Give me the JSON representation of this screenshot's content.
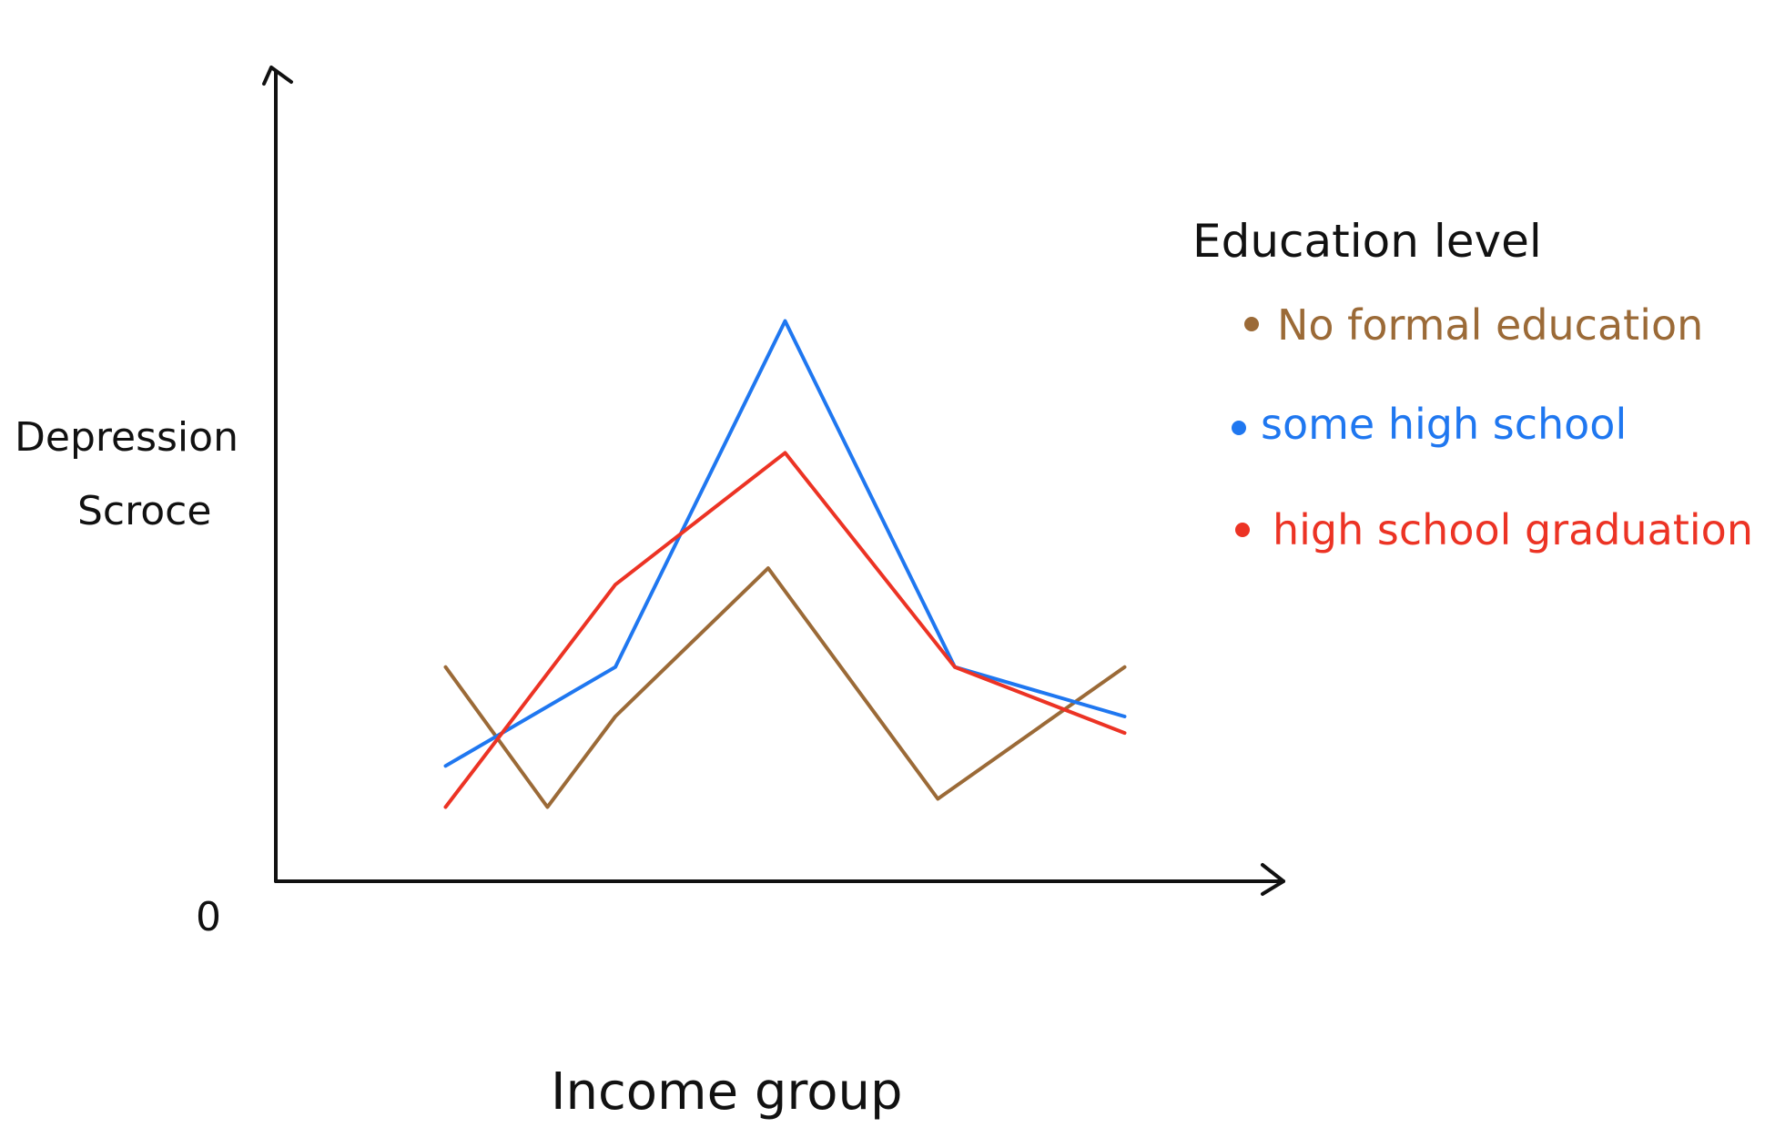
{
  "chart_data": {
    "type": "line",
    "title": "",
    "xlabel": "Income group",
    "ylabel_lines": [
      "Depression",
      "Scroce"
    ],
    "origin_label": "0",
    "x": [
      1,
      2,
      3,
      4,
      5
    ],
    "ylim": [
      0,
      10
    ],
    "xlim": [
      0,
      6.5
    ],
    "grid": false,
    "legend": {
      "title": "Education level",
      "placement": "right"
    },
    "series": [
      {
        "name": "No formal education",
        "color": "#9b6a37",
        "points": [
          [
            1,
            2.6
          ],
          [
            1.6,
            0.9
          ],
          [
            2.0,
            2.0
          ],
          [
            2.9,
            3.8
          ],
          [
            3.9,
            1.0
          ],
          [
            5,
            2.6
          ]
        ]
      },
      {
        "name": "some high school",
        "color": "#1f77f0",
        "points": [
          [
            1,
            1.4
          ],
          [
            2,
            2.6
          ],
          [
            3,
            6.8
          ],
          [
            4,
            2.6
          ],
          [
            5,
            2.0
          ]
        ]
      },
      {
        "name": "high school graduation",
        "color": "#ec3324",
        "points": [
          [
            1,
            0.9
          ],
          [
            2,
            3.6
          ],
          [
            3,
            5.2
          ],
          [
            4,
            2.6
          ],
          [
            5,
            1.8
          ]
        ]
      }
    ]
  }
}
